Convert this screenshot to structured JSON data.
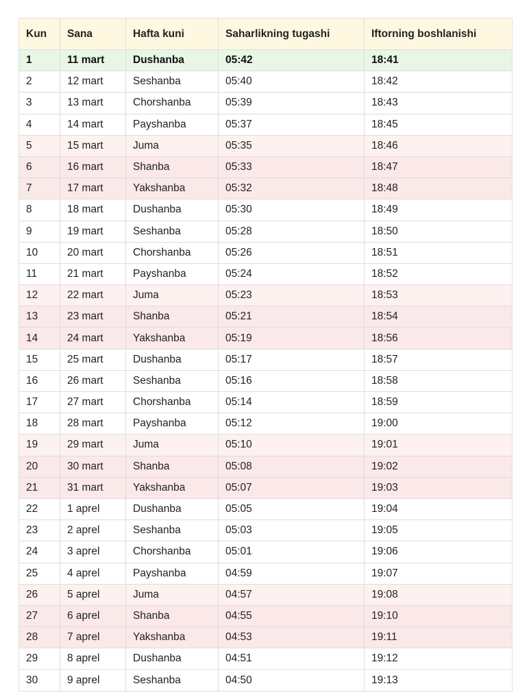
{
  "table": {
    "headers": [
      "Kun",
      "Sana",
      "Hafta kuni",
      "Saharlikning tugashi",
      "Iftorning boshlanishi"
    ],
    "rows": [
      {
        "kun": "1",
        "sana": "11 mart",
        "hafta_kuni": "Dushanba",
        "saharlik": "05:42",
        "iftor": "18:41"
      },
      {
        "kun": "2",
        "sana": "12 mart",
        "hafta_kuni": "Seshanba",
        "saharlik": "05:40",
        "iftor": "18:42"
      },
      {
        "kun": "3",
        "sana": "13 mart",
        "hafta_kuni": "Chorshanba",
        "saharlik": "05:39",
        "iftor": "18:43"
      },
      {
        "kun": "4",
        "sana": "14 mart",
        "hafta_kuni": "Payshanba",
        "saharlik": "05:37",
        "iftor": "18:45"
      },
      {
        "kun": "5",
        "sana": "15 mart",
        "hafta_kuni": "Juma",
        "saharlik": "05:35",
        "iftor": "18:46"
      },
      {
        "kun": "6",
        "sana": "16 mart",
        "hafta_kuni": "Shanba",
        "saharlik": "05:33",
        "iftor": "18:47"
      },
      {
        "kun": "7",
        "sana": "17 mart",
        "hafta_kuni": "Yakshanba",
        "saharlik": "05:32",
        "iftor": "18:48"
      },
      {
        "kun": "8",
        "sana": "18 mart",
        "hafta_kuni": "Dushanba",
        "saharlik": "05:30",
        "iftor": "18:49"
      },
      {
        "kun": "9",
        "sana": "19 mart",
        "hafta_kuni": "Seshanba",
        "saharlik": "05:28",
        "iftor": "18:50"
      },
      {
        "kun": "10",
        "sana": "20 mart",
        "hafta_kuni": "Chorshanba",
        "saharlik": "05:26",
        "iftor": "18:51"
      },
      {
        "kun": "11",
        "sana": "21 mart",
        "hafta_kuni": "Payshanba",
        "saharlik": "05:24",
        "iftor": "18:52"
      },
      {
        "kun": "12",
        "sana": "22 mart",
        "hafta_kuni": "Juma",
        "saharlik": "05:23",
        "iftor": "18:53"
      },
      {
        "kun": "13",
        "sana": "23 mart",
        "hafta_kuni": "Shanba",
        "saharlik": "05:21",
        "iftor": "18:54"
      },
      {
        "kun": "14",
        "sana": "24 mart",
        "hafta_kuni": "Yakshanba",
        "saharlik": "05:19",
        "iftor": "18:56"
      },
      {
        "kun": "15",
        "sana": "25 mart",
        "hafta_kuni": "Dushanba",
        "saharlik": "05:17",
        "iftor": "18:57"
      },
      {
        "kun": "16",
        "sana": "26 mart",
        "hafta_kuni": "Seshanba",
        "saharlik": "05:16",
        "iftor": "18:58"
      },
      {
        "kun": "17",
        "sana": "27 mart",
        "hafta_kuni": "Chorshanba",
        "saharlik": "05:14",
        "iftor": "18:59"
      },
      {
        "kun": "18",
        "sana": "28 mart",
        "hafta_kuni": "Payshanba",
        "saharlik": "05:12",
        "iftor": "19:00"
      },
      {
        "kun": "19",
        "sana": "29 mart",
        "hafta_kuni": "Juma",
        "saharlik": "05:10",
        "iftor": "19:01"
      },
      {
        "kun": "20",
        "sana": "30 mart",
        "hafta_kuni": "Shanba",
        "saharlik": "05:08",
        "iftor": "19:02"
      },
      {
        "kun": "21",
        "sana": "31 mart",
        "hafta_kuni": "Yakshanba",
        "saharlik": "05:07",
        "iftor": "19:03"
      },
      {
        "kun": "22",
        "sana": "1 aprel",
        "hafta_kuni": "Dushanba",
        "saharlik": "05:05",
        "iftor": "19:04"
      },
      {
        "kun": "23",
        "sana": "2 aprel",
        "hafta_kuni": "Seshanba",
        "saharlik": "05:03",
        "iftor": "19:05"
      },
      {
        "kun": "24",
        "sana": "3 aprel",
        "hafta_kuni": "Chorshanba",
        "saharlik": "05:01",
        "iftor": "19:06"
      },
      {
        "kun": "25",
        "sana": "4 aprel",
        "hafta_kuni": "Payshanba",
        "saharlik": "04:59",
        "iftor": "19:07"
      },
      {
        "kun": "26",
        "sana": "5 aprel",
        "hafta_kuni": "Juma",
        "saharlik": "04:57",
        "iftor": "19:08"
      },
      {
        "kun": "27",
        "sana": "6 aprel",
        "hafta_kuni": "Shanba",
        "saharlik": "04:55",
        "iftor": "19:10"
      },
      {
        "kun": "28",
        "sana": "7 aprel",
        "hafta_kuni": "Yakshanba",
        "saharlik": "04:53",
        "iftor": "19:11"
      },
      {
        "kun": "29",
        "sana": "8 aprel",
        "hafta_kuni": "Dushanba",
        "saharlik": "04:51",
        "iftor": "19:12"
      },
      {
        "kun": "30",
        "sana": "9 aprel",
        "hafta_kuni": "Seshanba",
        "saharlik": "04:50",
        "iftor": "19:13"
      }
    ]
  },
  "colors": {
    "header_bg": "#fff8e1",
    "today_bg": "#e8f6e5",
    "friday_bg": "#fdf2f0",
    "weekend_bg": "#fae9e8",
    "border": "#dddddd"
  }
}
